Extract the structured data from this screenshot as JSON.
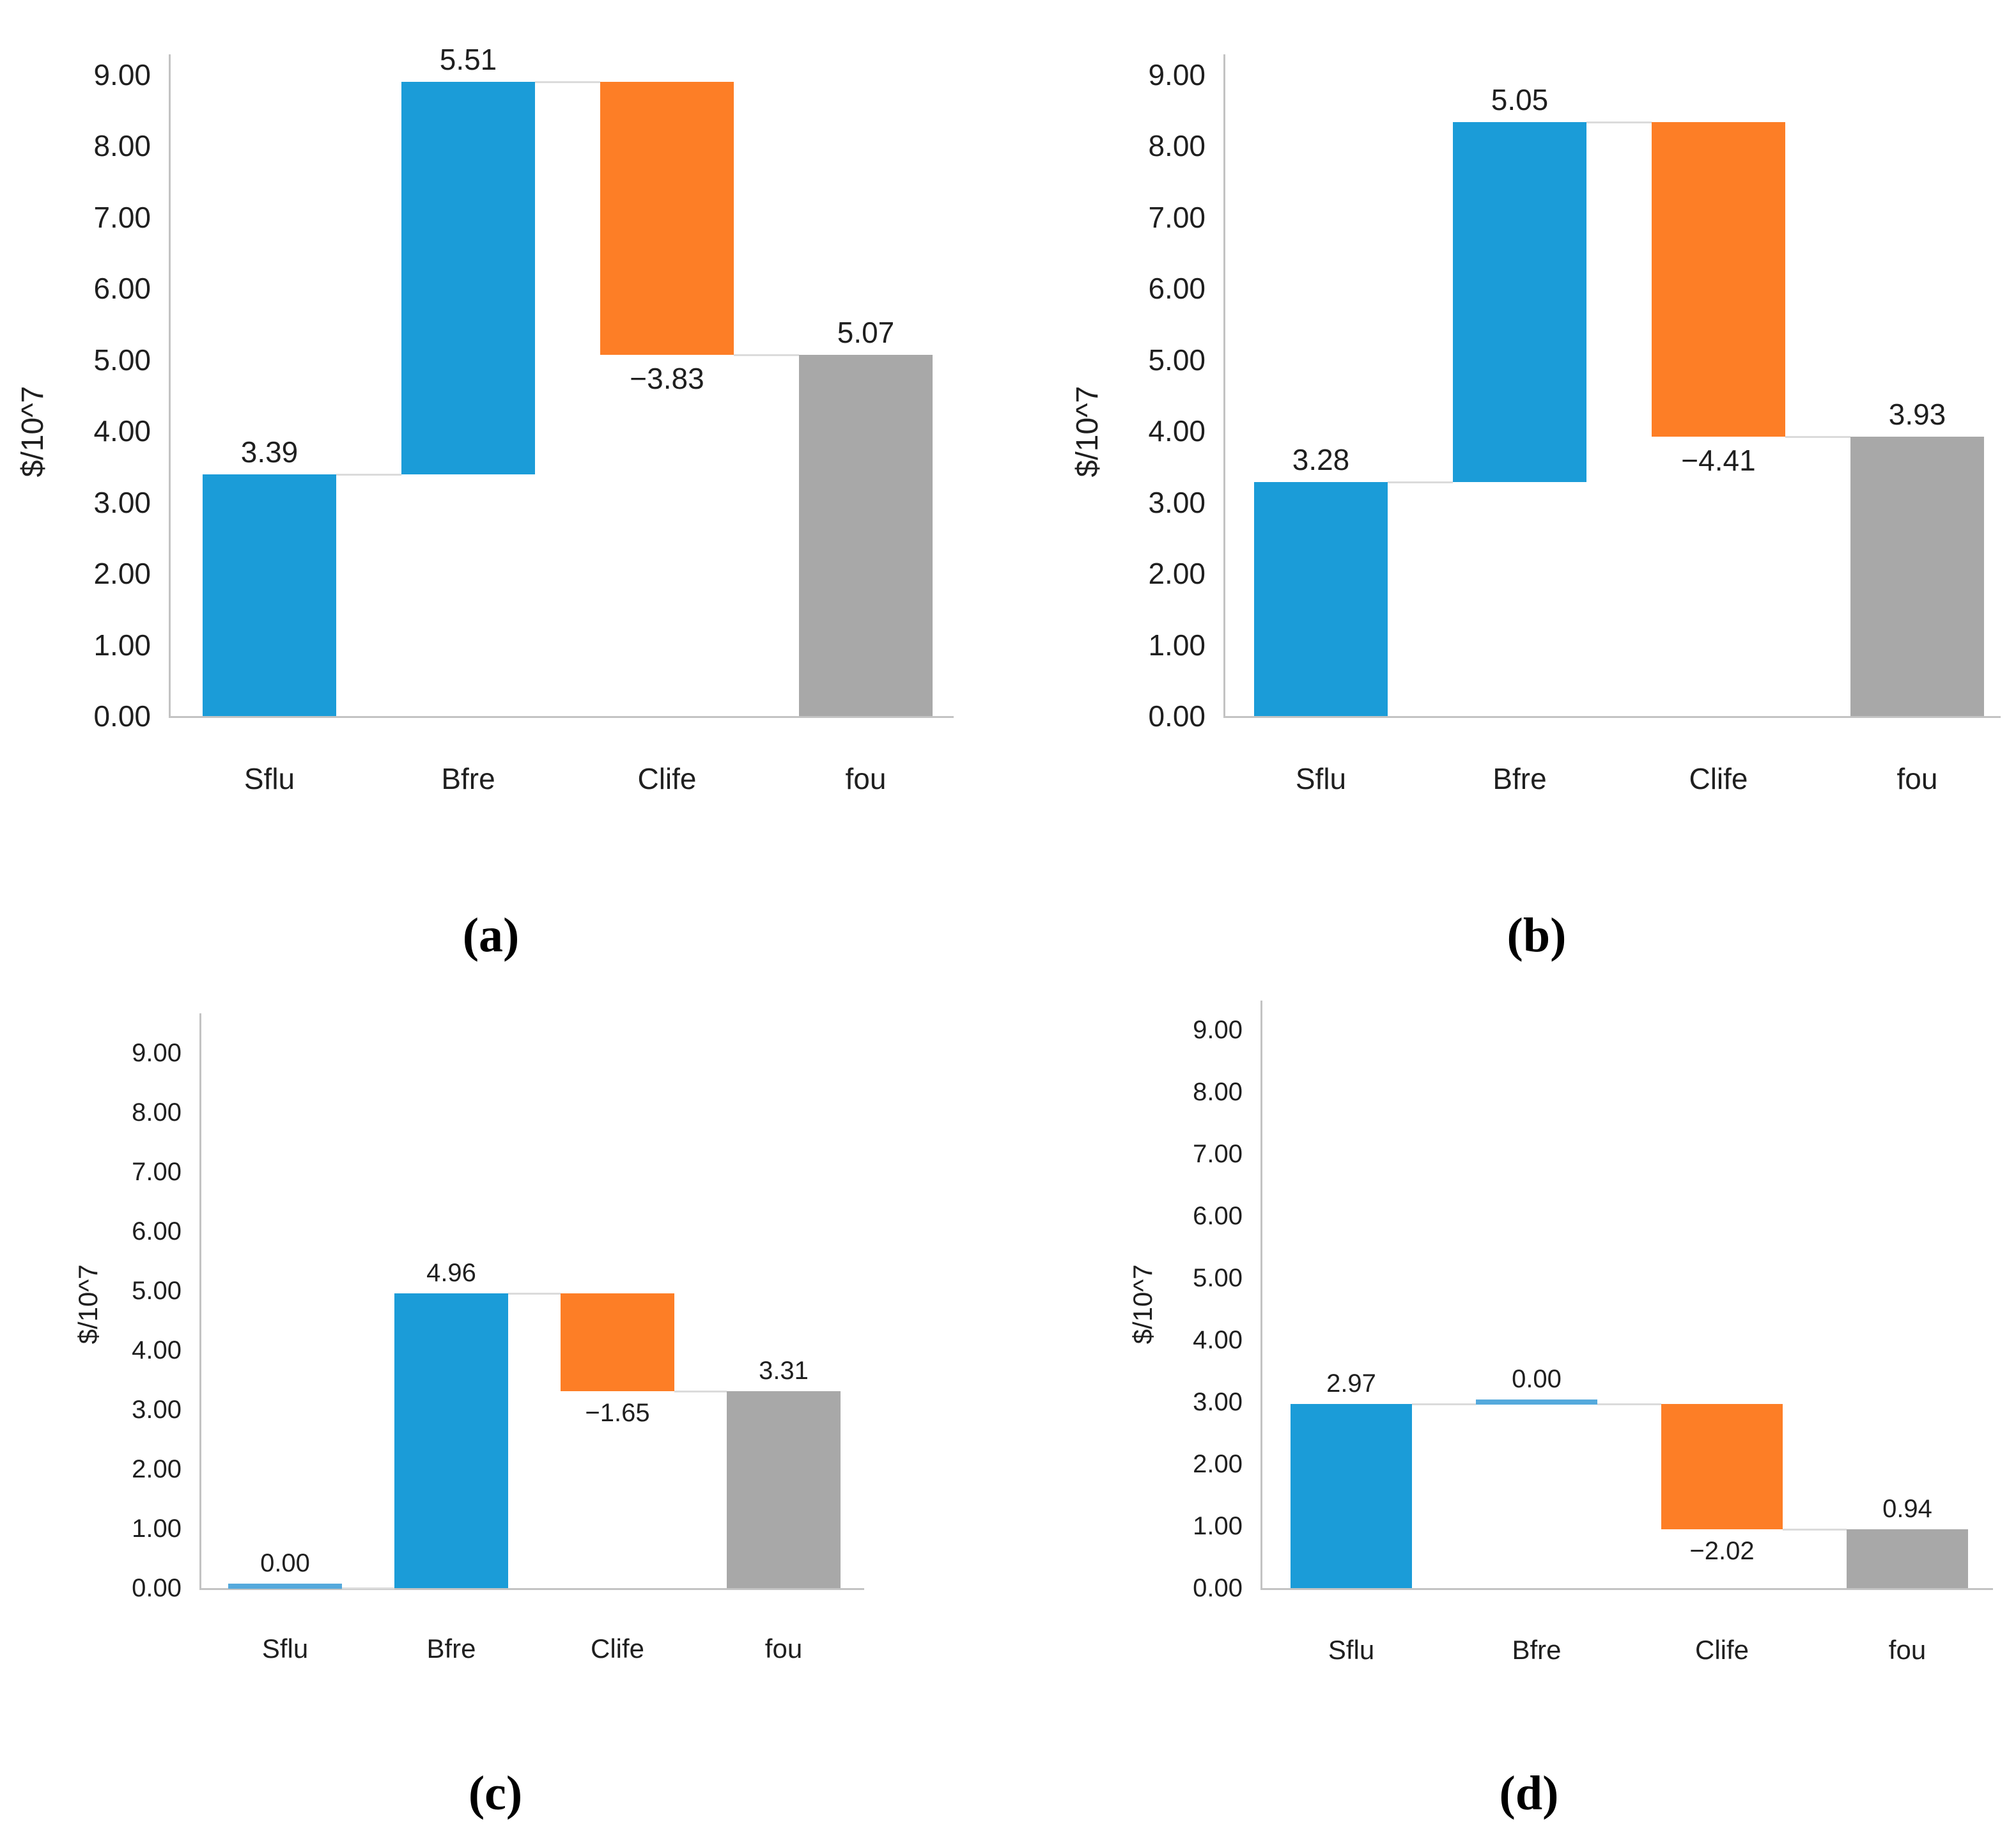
{
  "page": {
    "background": "#ffffff"
  },
  "colors": {
    "increase": "#1b9cd8",
    "decrease": "#fd7e26",
    "total": "#a8a8a8",
    "zero_marker": "#55a9dc",
    "axis_line": "#c3c3c3",
    "connector_line": "#dbdbdb",
    "text": "#1f1f1f"
  },
  "chart_data": [
    {
      "type": "waterfall",
      "panel_caption": "(a)",
      "ylabel": "$/10^7",
      "ylim": [
        0,
        9
      ],
      "ytick_step": 1.0,
      "grid": false,
      "legend": "none",
      "ytick_labels": [
        "0.00",
        "1.00",
        "2.00",
        "3.00",
        "4.00",
        "5.00",
        "6.00",
        "7.00",
        "8.00",
        "9.00"
      ],
      "categories": [
        "Sflu",
        "Bfre",
        "Clife",
        "fou"
      ],
      "values": [
        3.39,
        5.51,
        -3.83,
        5.07
      ],
      "data_labels": [
        "3.39",
        "5.51",
        "−3.83",
        "5.07"
      ],
      "roles": [
        "increase",
        "increase",
        "decrease",
        "total"
      ]
    },
    {
      "type": "waterfall",
      "panel_caption": "(b)",
      "ylabel": "$/10^7",
      "ylim": [
        0,
        9
      ],
      "ytick_step": 1.0,
      "grid": false,
      "legend": "none",
      "ytick_labels": [
        "0.00",
        "1.00",
        "2.00",
        "3.00",
        "4.00",
        "5.00",
        "6.00",
        "7.00",
        "8.00",
        "9.00"
      ],
      "categories": [
        "Sflu",
        "Bfre",
        "Clife",
        "fou"
      ],
      "values": [
        3.28,
        5.05,
        -4.41,
        3.93
      ],
      "data_labels": [
        "3.28",
        "5.05",
        "−4.41",
        "3.93"
      ],
      "roles": [
        "increase",
        "increase",
        "decrease",
        "total"
      ]
    },
    {
      "type": "waterfall",
      "panel_caption": "(c)",
      "ylabel": "$/10^7",
      "ylim": [
        0,
        9
      ],
      "ytick_step": 1.0,
      "grid": false,
      "legend": "none",
      "ytick_labels": [
        "0.00",
        "1.00",
        "2.00",
        "3.00",
        "4.00",
        "5.00",
        "6.00",
        "7.00",
        "8.00",
        "9.00"
      ],
      "categories": [
        "Sflu",
        "Bfre",
        "Clife",
        "fou"
      ],
      "values": [
        0.0,
        4.96,
        -1.65,
        3.31
      ],
      "data_labels": [
        "0.00",
        "4.96",
        "−1.65",
        "3.31"
      ],
      "roles": [
        "zero",
        "increase",
        "decrease",
        "total"
      ]
    },
    {
      "type": "waterfall",
      "panel_caption": "(d)",
      "ylabel": "$/10^7",
      "ylim": [
        0,
        9
      ],
      "ytick_step": 1.0,
      "grid": false,
      "legend": "none",
      "ytick_labels": [
        "0.00",
        "1.00",
        "2.00",
        "3.00",
        "4.00",
        "5.00",
        "6.00",
        "7.00",
        "8.00",
        "9.00"
      ],
      "categories": [
        "Sflu",
        "Bfre",
        "Clife",
        "fou"
      ],
      "values": [
        2.97,
        0.0,
        -2.02,
        0.94
      ],
      "data_labels": [
        "2.97",
        "0.00",
        "−2.02",
        "0.94"
      ],
      "roles": [
        "increase",
        "zero",
        "decrease",
        "total"
      ]
    }
  ]
}
